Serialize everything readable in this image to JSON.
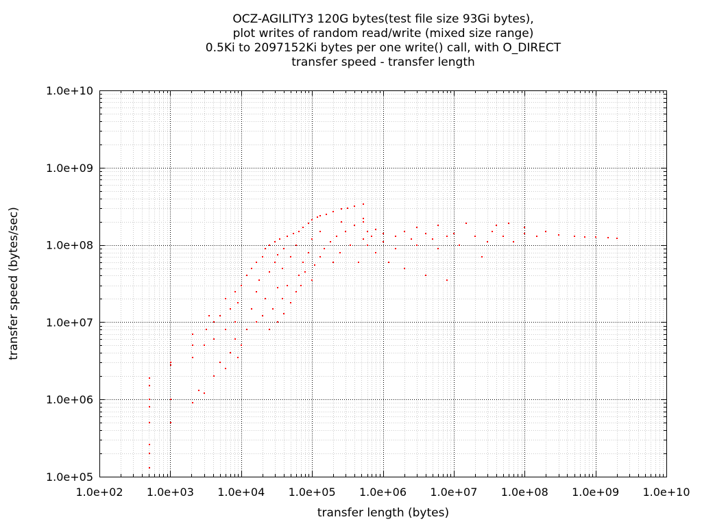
{
  "chart_data": {
    "type": "scatter",
    "title": [
      "OCZ-AGILITY3 120G bytes(test file size 93Gi bytes),",
      "plot writes of random read/write (mixed size range)",
      "0.5Ki to 2097152Ki bytes per one write() call, with O_DIRECT",
      "transfer speed - transfer length"
    ],
    "xlabel": "transfer length (bytes)",
    "ylabel": "transfer speed (bytes/sec)",
    "x_scale": "log",
    "y_scale": "log",
    "xlim": [
      100,
      10000000000
    ],
    "ylim": [
      100000,
      10000000000
    ],
    "x_ticks": [
      {
        "value": 100,
        "label": "1.0e+02"
      },
      {
        "value": 1000,
        "label": "1.0e+03"
      },
      {
        "value": 10000,
        "label": "1.0e+04"
      },
      {
        "value": 100000,
        "label": "1.0e+05"
      },
      {
        "value": 1000000,
        "label": "1.0e+06"
      },
      {
        "value": 10000000,
        "label": "1.0e+07"
      },
      {
        "value": 100000000,
        "label": "1.0e+08"
      },
      {
        "value": 1000000000,
        "label": "1.0e+09"
      },
      {
        "value": 10000000000,
        "label": "1.0e+10"
      }
    ],
    "y_ticks": [
      {
        "value": 100000,
        "label": "1.0e+05"
      },
      {
        "value": 1000000,
        "label": "1.0e+06"
      },
      {
        "value": 10000000,
        "label": "1.0e+07"
      },
      {
        "value": 100000000,
        "label": "1.0e+08"
      },
      {
        "value": 1000000000,
        "label": "1.0e+09"
      },
      {
        "value": 10000000000,
        "label": "1.0e+10"
      }
    ],
    "grid": true,
    "series": [
      {
        "color": "#ff0000",
        "points": [
          [
            512,
            130000
          ],
          [
            512,
            200000
          ],
          [
            512,
            260000
          ],
          [
            512,
            500000
          ],
          [
            512,
            800000
          ],
          [
            512,
            1000000
          ],
          [
            512,
            1500000
          ],
          [
            512,
            1900000
          ],
          [
            1024,
            500000
          ],
          [
            1024,
            1000000
          ],
          [
            1024,
            2800000
          ],
          [
            1024,
            3000000
          ],
          [
            2048,
            900000
          ],
          [
            2048,
            3500000
          ],
          [
            2048,
            5000000
          ],
          [
            2048,
            7000000
          ],
          [
            2500,
            1300000
          ],
          [
            3000,
            1200000
          ],
          [
            3000,
            5000000
          ],
          [
            3200,
            8000000
          ],
          [
            3500,
            12000000
          ],
          [
            4096,
            2000000
          ],
          [
            4096,
            6000000
          ],
          [
            4096,
            10000000
          ],
          [
            5000,
            3000000
          ],
          [
            5000,
            12000000
          ],
          [
            6000,
            2500000
          ],
          [
            6000,
            8000000
          ],
          [
            6000,
            20000000
          ],
          [
            7000,
            4000000
          ],
          [
            7000,
            15000000
          ],
          [
            8192,
            6000000
          ],
          [
            8192,
            10000000
          ],
          [
            8192,
            25000000
          ],
          [
            9000,
            3500000
          ],
          [
            9000,
            18000000
          ],
          [
            10000,
            5000000
          ],
          [
            10000,
            30000000
          ],
          [
            12000,
            8000000
          ],
          [
            12000,
            40000000
          ],
          [
            14000,
            15000000
          ],
          [
            14000,
            50000000
          ],
          [
            16384,
            10000000
          ],
          [
            16384,
            25000000
          ],
          [
            16384,
            60000000
          ],
          [
            18000,
            35000000
          ],
          [
            20000,
            12000000
          ],
          [
            20000,
            70000000
          ],
          [
            22000,
            20000000
          ],
          [
            22000,
            90000000
          ],
          [
            25000,
            8000000
          ],
          [
            25000,
            45000000
          ],
          [
            25000,
            100000000
          ],
          [
            28000,
            15000000
          ],
          [
            30000,
            60000000
          ],
          [
            30000,
            110000000
          ],
          [
            32768,
            10000000
          ],
          [
            32768,
            28000000
          ],
          [
            32768,
            75000000
          ],
          [
            35000,
            120000000
          ],
          [
            38000,
            20000000
          ],
          [
            38000,
            50000000
          ],
          [
            40000,
            13000000
          ],
          [
            40000,
            90000000
          ],
          [
            45000,
            30000000
          ],
          [
            45000,
            130000000
          ],
          [
            50000,
            18000000
          ],
          [
            50000,
            70000000
          ],
          [
            55000,
            140000000
          ],
          [
            60000,
            25000000
          ],
          [
            60000,
            100000000
          ],
          [
            65536,
            40000000
          ],
          [
            65536,
            150000000
          ],
          [
            70000,
            30000000
          ],
          [
            75000,
            60000000
          ],
          [
            75000,
            170000000
          ],
          [
            80000,
            45000000
          ],
          [
            90000,
            80000000
          ],
          [
            90000,
            190000000
          ],
          [
            100000,
            35000000
          ],
          [
            100000,
            120000000
          ],
          [
            100000,
            210000000
          ],
          [
            110000,
            55000000
          ],
          [
            120000,
            230000000
          ],
          [
            131072,
            70000000
          ],
          [
            131072,
            150000000
          ],
          [
            131072,
            240000000
          ],
          [
            150000,
            90000000
          ],
          [
            160000,
            250000000
          ],
          [
            180000,
            110000000
          ],
          [
            200000,
            60000000
          ],
          [
            200000,
            270000000
          ],
          [
            220000,
            130000000
          ],
          [
            250000,
            80000000
          ],
          [
            262144,
            200000000
          ],
          [
            262144,
            290000000
          ],
          [
            300000,
            150000000
          ],
          [
            320000,
            300000000
          ],
          [
            350000,
            100000000
          ],
          [
            400000,
            320000000
          ],
          [
            400000,
            180000000
          ],
          [
            450000,
            60000000
          ],
          [
            524288,
            340000000
          ],
          [
            524288,
            220000000
          ],
          [
            524288,
            120000000
          ],
          [
            524288,
            200000000
          ],
          [
            600000,
            150000000
          ],
          [
            600000,
            100000000
          ],
          [
            700000,
            130000000
          ],
          [
            800000,
            80000000
          ],
          [
            800000,
            160000000
          ],
          [
            1000000,
            110000000
          ],
          [
            1000000,
            140000000
          ],
          [
            1200000,
            60000000
          ],
          [
            1500000,
            130000000
          ],
          [
            1500000,
            90000000
          ],
          [
            2000000,
            150000000
          ],
          [
            2000000,
            50000000
          ],
          [
            2500000,
            120000000
          ],
          [
            3000000,
            100000000
          ],
          [
            3000000,
            170000000
          ],
          [
            4000000,
            140000000
          ],
          [
            4000000,
            40000000
          ],
          [
            5000000,
            120000000
          ],
          [
            6000000,
            90000000
          ],
          [
            6000000,
            180000000
          ],
          [
            8000000,
            130000000
          ],
          [
            8000000,
            35000000
          ],
          [
            10000000,
            140000000
          ],
          [
            12000000,
            100000000
          ],
          [
            15000000,
            190000000
          ],
          [
            20000000,
            130000000
          ],
          [
            25000000,
            70000000
          ],
          [
            30000000,
            110000000
          ],
          [
            35000000,
            150000000
          ],
          [
            40000000,
            180000000
          ],
          [
            50000000,
            130000000
          ],
          [
            60000000,
            190000000
          ],
          [
            70000000,
            110000000
          ],
          [
            100000000,
            140000000
          ],
          [
            100000000,
            170000000
          ],
          [
            150000000,
            130000000
          ],
          [
            200000000,
            150000000
          ],
          [
            300000000,
            135000000
          ],
          [
            500000000,
            130000000
          ],
          [
            700000000,
            128000000
          ],
          [
            1000000000,
            126000000
          ],
          [
            1500000000,
            124000000
          ],
          [
            2000000000,
            122000000
          ]
        ]
      }
    ]
  }
}
